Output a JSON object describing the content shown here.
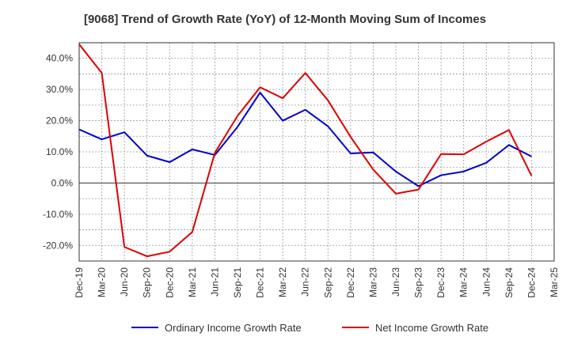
{
  "chart_data": {
    "type": "line",
    "title": "[9068]  Trend of Growth Rate (YoY) of 12-Month Moving Sum of Incomes",
    "xlabel": "",
    "ylabel": "",
    "x": [
      "Dec-19",
      "Mar-20",
      "Jun-20",
      "Sep-20",
      "Dec-20",
      "Mar-21",
      "Jun-21",
      "Sep-21",
      "Dec-21",
      "Mar-22",
      "Jun-22",
      "Sep-22",
      "Dec-22",
      "Mar-23",
      "Jun-23",
      "Sep-23",
      "Dec-23",
      "Mar-24",
      "Jun-24",
      "Sep-24",
      "Dec-24",
      "Mar-25"
    ],
    "ylim": [
      -25,
      45
    ],
    "yticks": [
      -20,
      -10,
      0,
      10,
      20,
      30,
      40
    ],
    "ytick_labels": [
      "-20.0%",
      "-10.0%",
      "0.0%",
      "10.0%",
      "20.0%",
      "30.0%",
      "40.0%"
    ],
    "grid": true,
    "legend_position": "bottom",
    "series": [
      {
        "name": "Ordinary Income Growth Rate",
        "color": "#0000cc",
        "values": [
          17.2,
          14.0,
          16.3,
          8.8,
          6.7,
          10.8,
          9.0,
          18.0,
          29.0,
          20.0,
          23.5,
          18.2,
          9.5,
          9.8,
          3.7,
          -1.0,
          2.5,
          3.7,
          6.5,
          12.2,
          8.5,
          null
        ]
      },
      {
        "name": "Net Income Growth Rate",
        "color": "#dd0000",
        "values": [
          44.5,
          35.3,
          -20.5,
          -23.5,
          -22.0,
          -15.7,
          9.7,
          21.5,
          30.7,
          27.2,
          35.3,
          26.5,
          14.8,
          4.3,
          -3.4,
          -2.1,
          9.3,
          9.2,
          13.3,
          17.0,
          2.3,
          null
        ]
      }
    ]
  }
}
